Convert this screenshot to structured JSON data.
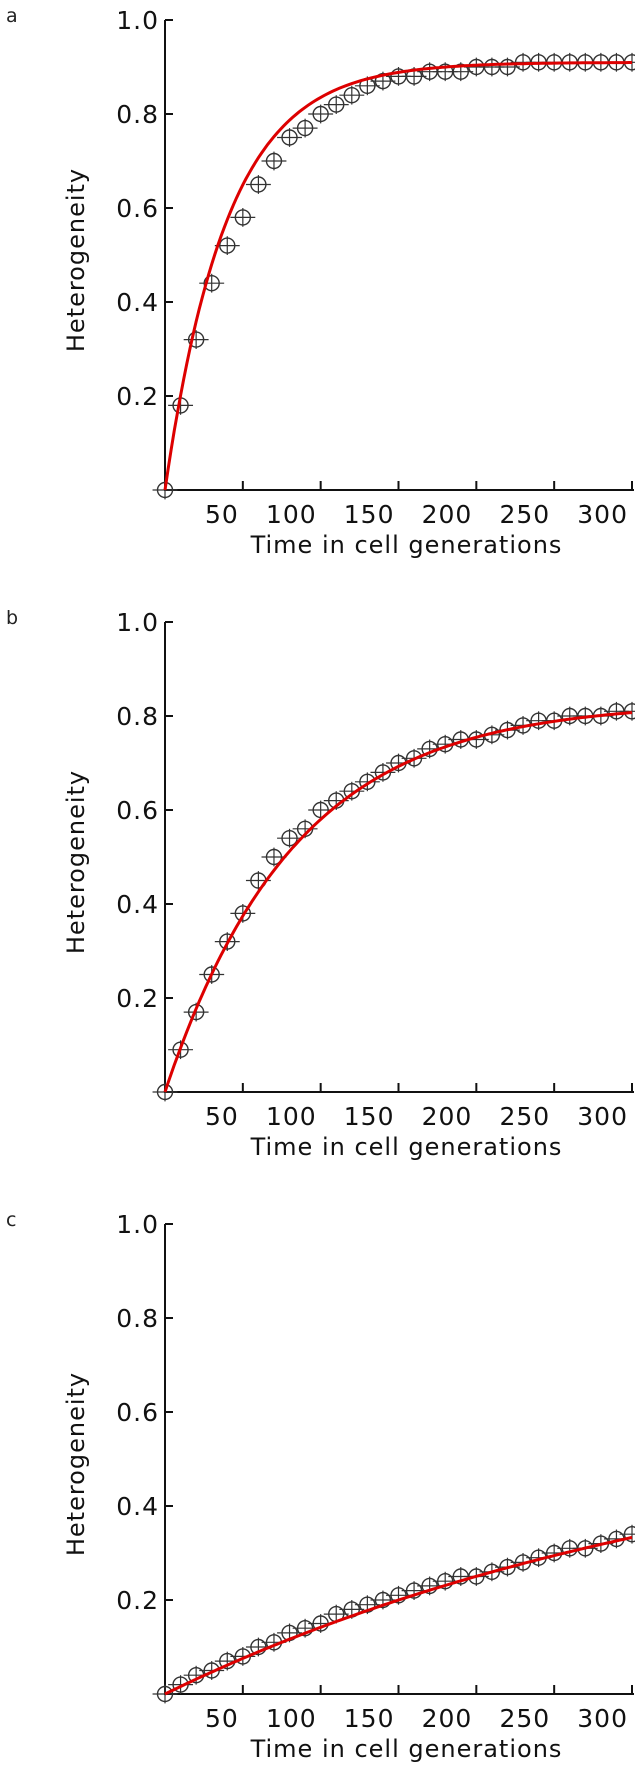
{
  "colors": {
    "fit": "#dd0000",
    "marker": "#333333",
    "axis": "#111111"
  },
  "chart_data": [
    {
      "panel": "a",
      "type": "scatter",
      "xlabel": "Time in cell generations",
      "ylabel": "Heterogeneity",
      "xlim": [
        0,
        300
      ],
      "ylim": [
        0,
        1.0
      ],
      "xticks": [
        50,
        100,
        150,
        200,
        250,
        300
      ],
      "yticks": [
        0.2,
        0.4,
        0.6,
        0.8,
        1.0
      ],
      "x_err": 8,
      "y_err": 0.02,
      "points": [
        [
          0,
          0.0
        ],
        [
          10,
          0.18
        ],
        [
          20,
          0.32
        ],
        [
          30,
          0.44
        ],
        [
          40,
          0.52
        ],
        [
          50,
          0.58
        ],
        [
          60,
          0.65
        ],
        [
          70,
          0.7
        ],
        [
          80,
          0.75
        ],
        [
          90,
          0.77
        ],
        [
          100,
          0.8
        ],
        [
          110,
          0.82
        ],
        [
          120,
          0.84
        ],
        [
          130,
          0.86
        ],
        [
          140,
          0.87
        ],
        [
          150,
          0.88
        ],
        [
          160,
          0.88
        ],
        [
          170,
          0.89
        ],
        [
          180,
          0.89
        ],
        [
          190,
          0.89
        ],
        [
          200,
          0.9
        ],
        [
          210,
          0.9
        ],
        [
          220,
          0.9
        ],
        [
          230,
          0.91
        ],
        [
          240,
          0.91
        ],
        [
          250,
          0.91
        ],
        [
          260,
          0.91
        ],
        [
          270,
          0.91
        ],
        [
          280,
          0.91
        ],
        [
          290,
          0.91
        ],
        [
          300,
          0.91
        ]
      ],
      "fit": {
        "plateau": 0.91,
        "rate": 0.025
      }
    },
    {
      "panel": "b",
      "type": "scatter",
      "xlabel": "Time in cell generations",
      "ylabel": "Heterogeneity",
      "xlim": [
        0,
        300
      ],
      "ylim": [
        0,
        1.0
      ],
      "xticks": [
        50,
        100,
        150,
        200,
        250,
        300
      ],
      "yticks": [
        0.2,
        0.4,
        0.6,
        0.8,
        1.0
      ],
      "x_err": 8,
      "y_err": 0.02,
      "points": [
        [
          0,
          0.0
        ],
        [
          10,
          0.09
        ],
        [
          20,
          0.17
        ],
        [
          30,
          0.25
        ],
        [
          40,
          0.32
        ],
        [
          50,
          0.38
        ],
        [
          60,
          0.45
        ],
        [
          70,
          0.5
        ],
        [
          80,
          0.54
        ],
        [
          90,
          0.56
        ],
        [
          100,
          0.6
        ],
        [
          110,
          0.62
        ],
        [
          120,
          0.64
        ],
        [
          130,
          0.66
        ],
        [
          140,
          0.68
        ],
        [
          150,
          0.7
        ],
        [
          160,
          0.71
        ],
        [
          170,
          0.73
        ],
        [
          180,
          0.74
        ],
        [
          190,
          0.75
        ],
        [
          200,
          0.75
        ],
        [
          210,
          0.76
        ],
        [
          220,
          0.77
        ],
        [
          230,
          0.78
        ],
        [
          240,
          0.79
        ],
        [
          250,
          0.79
        ],
        [
          260,
          0.8
        ],
        [
          270,
          0.8
        ],
        [
          280,
          0.8
        ],
        [
          290,
          0.81
        ],
        [
          300,
          0.81
        ]
      ],
      "fit": {
        "plateau": 0.83,
        "rate": 0.012
      }
    },
    {
      "panel": "c",
      "type": "scatter",
      "xlabel": "Time in cell generations",
      "ylabel": "Heterogeneity",
      "xlim": [
        0,
        300
      ],
      "ylim": [
        0,
        1.0
      ],
      "xticks": [
        50,
        100,
        150,
        200,
        250,
        300
      ],
      "yticks": [
        0.2,
        0.4,
        0.6,
        0.8,
        1.0
      ],
      "x_err": 8,
      "y_err": 0.02,
      "points": [
        [
          0,
          0.0
        ],
        [
          10,
          0.02
        ],
        [
          20,
          0.04
        ],
        [
          30,
          0.05
        ],
        [
          40,
          0.07
        ],
        [
          50,
          0.08
        ],
        [
          60,
          0.1
        ],
        [
          70,
          0.11
        ],
        [
          80,
          0.13
        ],
        [
          90,
          0.14
        ],
        [
          100,
          0.15
        ],
        [
          110,
          0.17
        ],
        [
          120,
          0.18
        ],
        [
          130,
          0.19
        ],
        [
          140,
          0.2
        ],
        [
          150,
          0.21
        ],
        [
          160,
          0.22
        ],
        [
          170,
          0.23
        ],
        [
          180,
          0.24
        ],
        [
          190,
          0.25
        ],
        [
          200,
          0.25
        ],
        [
          210,
          0.26
        ],
        [
          220,
          0.27
        ],
        [
          230,
          0.28
        ],
        [
          240,
          0.29
        ],
        [
          250,
          0.3
        ],
        [
          260,
          0.31
        ],
        [
          270,
          0.31
        ],
        [
          280,
          0.32
        ],
        [
          290,
          0.33
        ],
        [
          300,
          0.34
        ]
      ],
      "fit": {
        "plateau": 0.6,
        "rate": 0.0027
      }
    }
  ]
}
